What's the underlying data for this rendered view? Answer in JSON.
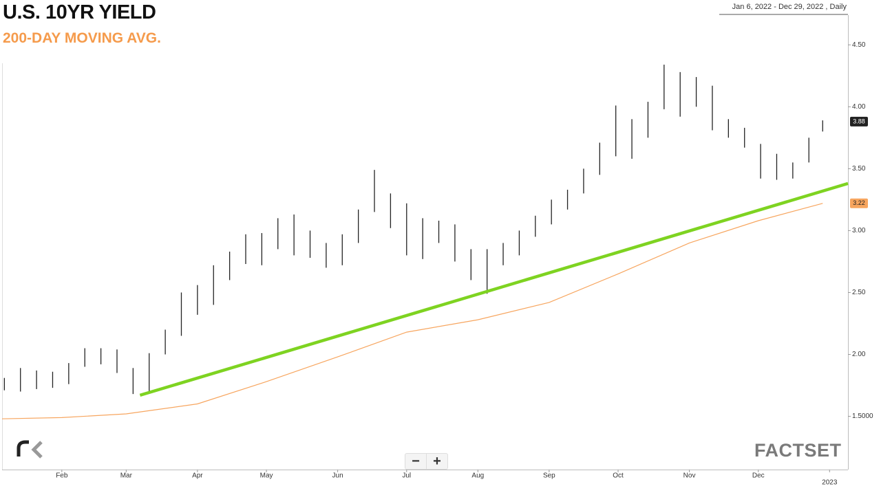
{
  "chart_data": {
    "type": "ohlc",
    "title": "U.S. 10YR YIELD",
    "subtitle": "200-DAY MOVING AVG.",
    "date_range": "Jan 6, 2022 - Dec 29, 2022 , Daily",
    "watermark": "FACTSET",
    "controls": [
      "−",
      "+"
    ],
    "xlim": [
      "2022-01-06",
      "2023-01-09"
    ],
    "xticks": [
      {
        "value": "2022-02-01",
        "label": "Feb"
      },
      {
        "value": "2022-03-01",
        "label": "Mar"
      },
      {
        "value": "2022-04-01",
        "label": "Apr"
      },
      {
        "value": "2022-05-01",
        "label": "May"
      },
      {
        "value": "2022-06-01",
        "label": "Jun"
      },
      {
        "value": "2022-07-01",
        "label": "Jul"
      },
      {
        "value": "2022-08-01",
        "label": "Aug"
      },
      {
        "value": "2022-09-01",
        "label": "Sep"
      },
      {
        "value": "2022-10-01",
        "label": "Oct"
      },
      {
        "value": "2022-11-01",
        "label": "Nov"
      },
      {
        "value": "2022-12-01",
        "label": "Dec"
      },
      {
        "value": "2023-01-01",
        "label": "2023"
      }
    ],
    "ylim": [
      1.07,
      4.74
    ],
    "yticks": [
      {
        "value": 1.5,
        "label": "1.5000"
      },
      {
        "value": 2.0,
        "label": "2.00"
      },
      {
        "value": 2.5,
        "label": "2.50"
      },
      {
        "value": 3.0,
        "label": "3.00"
      },
      {
        "value": 3.5,
        "label": "3.50"
      },
      {
        "value": 4.0,
        "label": "4.00"
      },
      {
        "value": 4.5,
        "label": "4.50"
      }
    ],
    "price": {
      "color": "#222222",
      "x": [
        "2022-01-07",
        "2022-01-14",
        "2022-01-21",
        "2022-01-28",
        "2022-02-04",
        "2022-02-11",
        "2022-02-18",
        "2022-02-25",
        "2022-03-04",
        "2022-03-11",
        "2022-03-18",
        "2022-03-25",
        "2022-04-01",
        "2022-04-08",
        "2022-04-15",
        "2022-04-22",
        "2022-04-29",
        "2022-05-06",
        "2022-05-13",
        "2022-05-20",
        "2022-05-27",
        "2022-06-03",
        "2022-06-10",
        "2022-06-17",
        "2022-06-24",
        "2022-07-01",
        "2022-07-08",
        "2022-07-15",
        "2022-07-22",
        "2022-07-29",
        "2022-08-05",
        "2022-08-12",
        "2022-08-19",
        "2022-08-26",
        "2022-09-02",
        "2022-09-09",
        "2022-09-16",
        "2022-09-23",
        "2022-09-30",
        "2022-10-07",
        "2022-10-14",
        "2022-10-21",
        "2022-10-28",
        "2022-11-04",
        "2022-11-11",
        "2022-11-18",
        "2022-11-25",
        "2022-12-02",
        "2022-12-09",
        "2022-12-16",
        "2022-12-23",
        "2022-12-29"
      ],
      "low": [
        1.71,
        1.7,
        1.72,
        1.73,
        1.76,
        1.9,
        1.92,
        1.85,
        1.68,
        1.7,
        2.0,
        2.15,
        2.32,
        2.4,
        2.6,
        2.73,
        2.72,
        2.85,
        2.8,
        2.78,
        2.7,
        2.72,
        2.9,
        3.15,
        3.02,
        2.8,
        2.77,
        2.9,
        2.75,
        2.6,
        2.49,
        2.72,
        2.8,
        2.95,
        3.05,
        3.17,
        3.3,
        3.45,
        3.6,
        3.58,
        3.75,
        3.98,
        3.92,
        4.0,
        3.81,
        3.75,
        3.67,
        3.42,
        3.41,
        3.42,
        3.55,
        3.8
      ],
      "high": [
        1.81,
        1.89,
        1.87,
        1.86,
        1.93,
        2.05,
        2.05,
        2.04,
        1.89,
        2.01,
        2.2,
        2.5,
        2.56,
        2.72,
        2.83,
        2.97,
        2.98,
        3.1,
        3.13,
        3.0,
        2.9,
        2.97,
        3.17,
        3.49,
        3.3,
        3.22,
        3.1,
        3.08,
        3.05,
        2.85,
        2.85,
        2.9,
        3.0,
        3.12,
        3.25,
        3.33,
        3.5,
        3.71,
        4.01,
        3.9,
        4.04,
        4.34,
        4.28,
        4.24,
        4.17,
        3.9,
        3.83,
        3.7,
        3.62,
        3.55,
        3.75,
        3.89
      ],
      "last": 3.88
    },
    "moving_average": {
      "color": "#f7a55e",
      "x": [
        "2022-01-06",
        "2022-02-01",
        "2022-03-01",
        "2022-04-01",
        "2022-05-01",
        "2022-06-01",
        "2022-07-01",
        "2022-08-01",
        "2022-09-01",
        "2022-10-01",
        "2022-11-01",
        "2022-12-01",
        "2022-12-29"
      ],
      "values": [
        1.48,
        1.49,
        1.52,
        1.6,
        1.78,
        1.98,
        2.18,
        2.28,
        2.42,
        2.65,
        2.9,
        3.08,
        3.22
      ],
      "last": 3.22
    },
    "trendline": {
      "color": "#7ed321",
      "x": [
        "2022-03-07",
        "2023-01-09"
      ],
      "values": [
        1.67,
        3.38
      ]
    }
  }
}
